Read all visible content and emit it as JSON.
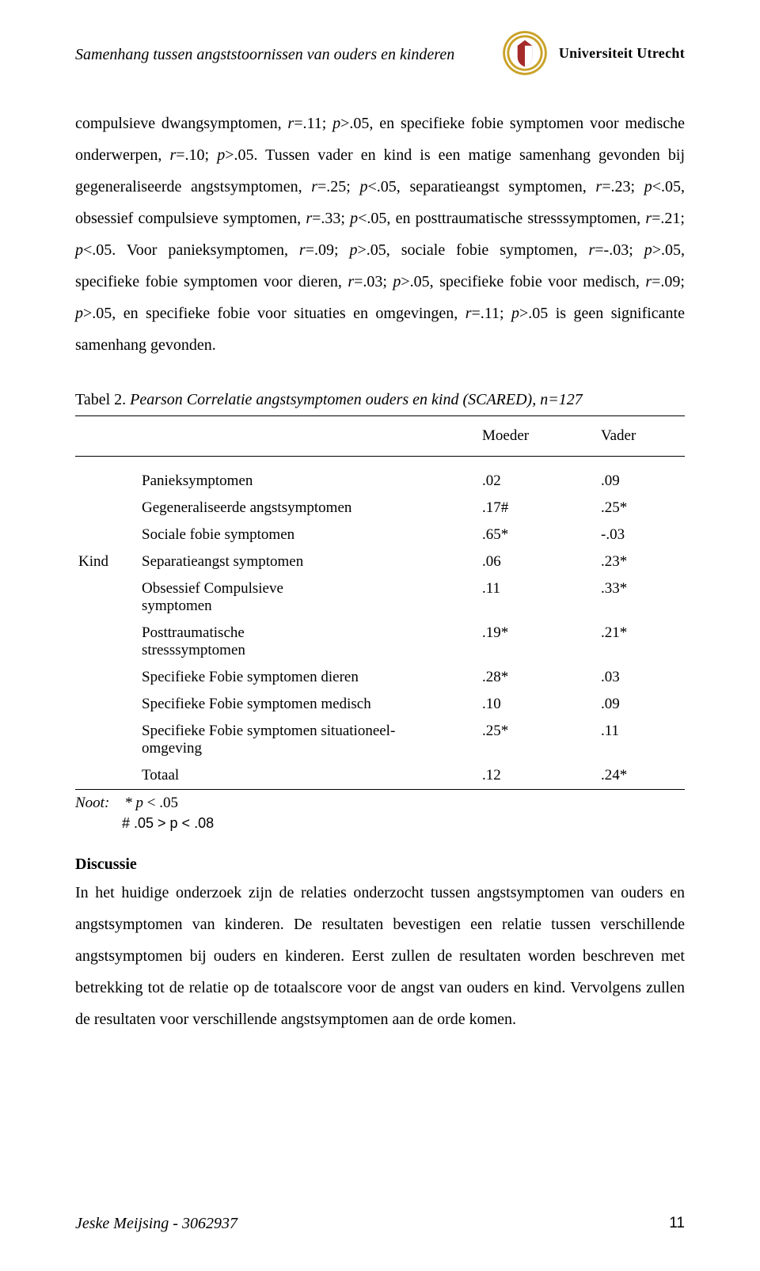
{
  "header": {
    "running_title": "Samenhang tussen angststoornissen van ouders en kinderen",
    "university": "Universiteit Utrecht",
    "seal": {
      "outer_color": "#c9a227",
      "inner_color": "#a52a2a",
      "accent_color": "#ffffff"
    }
  },
  "paragraph1_runs": [
    {
      "text": "compulsieve dwangsymptomen, ",
      "italic": false
    },
    {
      "text": "r",
      "italic": true
    },
    {
      "text": "=.11; ",
      "italic": false
    },
    {
      "text": "p",
      "italic": true
    },
    {
      "text": ">.05, en specifieke fobie symptomen voor medische onderwerpen, ",
      "italic": false
    },
    {
      "text": "r",
      "italic": true
    },
    {
      "text": "=.10; ",
      "italic": false
    },
    {
      "text": "p",
      "italic": true
    },
    {
      "text": ">.05. Tussen vader en kind is een matige samenhang gevonden bij gegeneraliseerde angstsymptomen, ",
      "italic": false
    },
    {
      "text": "r",
      "italic": true
    },
    {
      "text": "=.25; ",
      "italic": false
    },
    {
      "text": "p",
      "italic": true
    },
    {
      "text": "<.05, separatieangst symptomen, ",
      "italic": false
    },
    {
      "text": "r",
      "italic": true
    },
    {
      "text": "=.23; ",
      "italic": false
    },
    {
      "text": "p",
      "italic": true
    },
    {
      "text": "<.05, obsessief compulsieve symptomen, ",
      "italic": false
    },
    {
      "text": "r",
      "italic": true
    },
    {
      "text": "=.33; ",
      "italic": false
    },
    {
      "text": "p",
      "italic": true
    },
    {
      "text": "<.05, en posttraumatische stresssymptomen, ",
      "italic": false
    },
    {
      "text": "r",
      "italic": true
    },
    {
      "text": "=.21; ",
      "italic": false
    },
    {
      "text": "p",
      "italic": true
    },
    {
      "text": "<.05. Voor panieksymptomen, ",
      "italic": false
    },
    {
      "text": "r",
      "italic": true
    },
    {
      "text": "=.09; ",
      "italic": false
    },
    {
      "text": "p",
      "italic": true
    },
    {
      "text": ">.05, sociale fobie symptomen, ",
      "italic": false
    },
    {
      "text": "r",
      "italic": true
    },
    {
      "text": "=-.03; ",
      "italic": false
    },
    {
      "text": "p",
      "italic": true
    },
    {
      "text": ">.05, specifieke fobie symptomen voor dieren, ",
      "italic": false
    },
    {
      "text": "r",
      "italic": true
    },
    {
      "text": "=.03; ",
      "italic": false
    },
    {
      "text": "p",
      "italic": true
    },
    {
      "text": ">.05, specifieke fobie voor medisch, ",
      "italic": false
    },
    {
      "text": "r",
      "italic": true
    },
    {
      "text": "=.09; ",
      "italic": false
    },
    {
      "text": "p",
      "italic": true
    },
    {
      "text": ">.05, en specifieke fobie voor situaties en omgevingen, ",
      "italic": false
    },
    {
      "text": "r",
      "italic": true
    },
    {
      "text": "=.11; ",
      "italic": false
    },
    {
      "text": "p",
      "italic": true
    },
    {
      "text": ">.05 is geen significante samenhang gevonden.",
      "italic": false
    }
  ],
  "table": {
    "caption_prefix": "Tabel 2. ",
    "caption_italic": "Pearson Correlatie angstsymptomen ouders en kind (SCARED), n=127",
    "col_headers": [
      "Moeder",
      "Vader"
    ],
    "row_group_label": "Kind",
    "rows": [
      {
        "label": "Panieksymptomen",
        "moeder": ".02",
        "vader": ".09"
      },
      {
        "label": "Gegeneraliseerde angstsymptomen",
        "moeder": ".17#",
        "vader": ".25*"
      },
      {
        "label": "Sociale fobie symptomen",
        "moeder": ".65*",
        "vader": "-.03"
      },
      {
        "label": "Separatieangst symptomen",
        "moeder": ".06",
        "vader": ".23*"
      },
      {
        "label": "Obsessief Compulsieve symptomen",
        "moeder": ".11",
        "vader": ".33*"
      },
      {
        "label": "Posttraumatische stresssymptomen",
        "moeder": ".19*",
        "vader": ".21*"
      },
      {
        "label": "Specifieke Fobie symptomen dieren",
        "moeder": ".28*",
        "vader": ".03"
      },
      {
        "label": "Specifieke Fobie symptomen medisch",
        "moeder": ".10",
        "vader": ".09"
      },
      {
        "label": "Specifieke Fobie symptomen situationeel-omgeving",
        "moeder": ".25*",
        "vader": ".11"
      },
      {
        "label": "Totaal",
        "moeder": ".12",
        "vader": ".24*"
      }
    ],
    "note_label": "Noot:",
    "note_line1": "* p < .05",
    "note_line2": "# .05 > p < .08"
  },
  "discussion": {
    "heading": "Discussie",
    "body": "In het huidige onderzoek zijn de relaties onderzocht tussen angstsymptomen van ouders en angstsymptomen van kinderen. De resultaten bevestigen een relatie tussen verschillende angstsymptomen bij ouders en kinderen. Eerst zullen de resultaten worden beschreven met betrekking tot de relatie op de totaalscore voor de angst van ouders en kind. Vervolgens zullen de resultaten voor verschillende angstsymptomen aan de orde komen."
  },
  "footer": {
    "author": "Jeske Meijsing - 3062937",
    "page": "11"
  }
}
